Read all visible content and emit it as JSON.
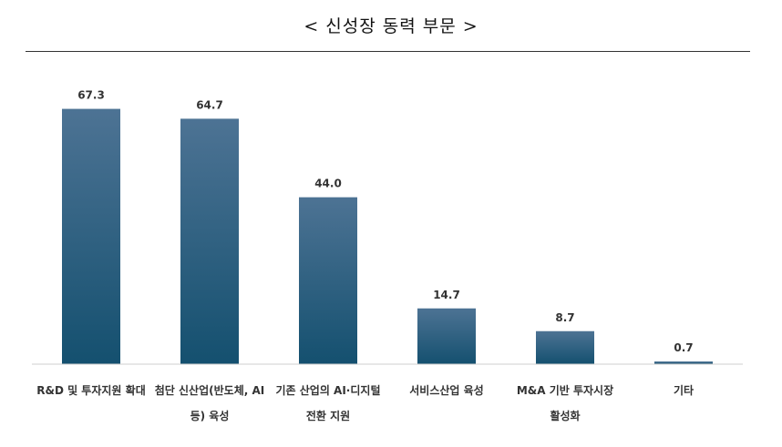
{
  "chart_data": {
    "type": "bar",
    "title": "< 신성장 동력 부문 >",
    "categories": [
      [
        "R&D 및 투자지원 확대"
      ],
      [
        "첨단 신산업(반도체, AI",
        "등) 육성"
      ],
      [
        "기존 산업의 AI·디지털",
        "전환 지원"
      ],
      [
        "서비스산업 육성"
      ],
      [
        "M&A 기반 투자시장",
        "활성화"
      ],
      [
        "기타"
      ]
    ],
    "values": [
      67.3,
      64.7,
      44.0,
      14.7,
      8.7,
      0.7
    ],
    "value_labels": [
      "67.3",
      "64.7",
      "44.0",
      "14.7",
      "8.7",
      "0.7"
    ],
    "ylim": [
      0,
      72
    ],
    "grid": false,
    "legend": "none",
    "colors": {
      "bar_top": "#4d7394",
      "bar_bottom": "#14506f",
      "axis": "#cfcfcf"
    }
  }
}
